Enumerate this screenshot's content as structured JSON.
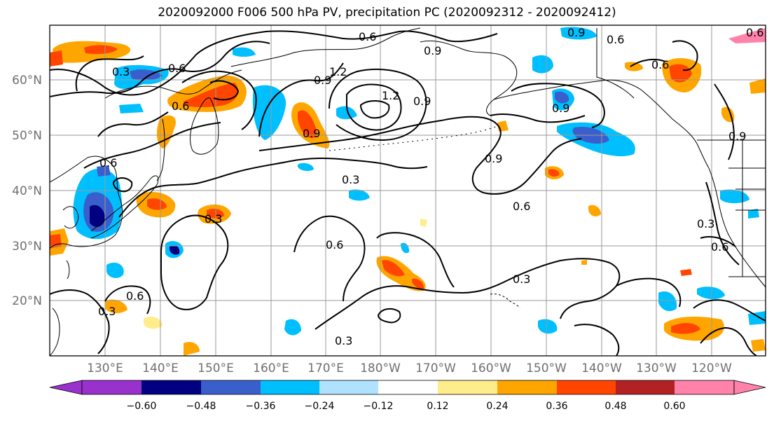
{
  "title": "2020092000 F006 500 hPa PV, precipitation PC (2020092312 - 2020092412)",
  "map": {
    "lat_labels": [
      "60°N",
      "50°N",
      "40°N",
      "30°N",
      "20°N"
    ],
    "lon_labels": [
      "130°E",
      "140°E",
      "150°E",
      "160°E",
      "170°E",
      "180°W",
      "170°W",
      "160°W",
      "150°W",
      "140°W",
      "130°W",
      "120°W"
    ],
    "contour_labels": [
      "0.3",
      "0.6",
      "0.6",
      "0.9",
      "1.2",
      "0.9",
      "0.6",
      "0.9",
      "1.2",
      "0.9",
      "0.9",
      "0.9",
      "0.6",
      "0.6",
      "0.3",
      "0.6",
      "0.3",
      "0.9",
      "0.3",
      "0.6",
      "0.3",
      "0.6",
      "0.3",
      "0.3",
      "0.6",
      "0.6",
      "0.6",
      "0.9"
    ]
  },
  "colorbar": {
    "ticks": [
      "−0.60",
      "−0.48",
      "−0.36",
      "−0.24",
      "−0.12",
      "0.12",
      "0.24",
      "0.36",
      "0.48",
      "0.60"
    ],
    "colors": [
      "#9932cc",
      "#000080",
      "#3a5fcd",
      "#00bfff",
      "#b0e2ff",
      "#ffffff",
      "#ffec8b",
      "#ffa500",
      "#ff4500",
      "#b22222",
      "#ff82ab"
    ]
  },
  "palette": {
    "dark_blue": "#000080",
    "blue": "#3a5fcd",
    "cyan": "#00bfff",
    "light_blue": "#b0e2ff",
    "yellow": "#ffec8b",
    "orange": "#ffa500",
    "red_orange": "#ff4500",
    "dark_red": "#b22222",
    "pink": "#ff82ab"
  }
}
